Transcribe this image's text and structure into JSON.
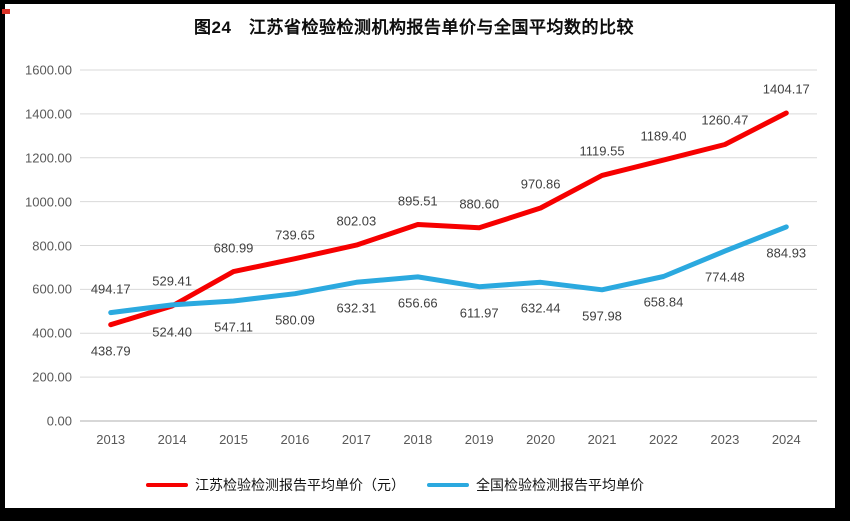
{
  "page": {
    "title": "图24　江苏省检验检测机构报告单价与全国平均数的比较"
  },
  "chart_data": {
    "type": "line",
    "title": "图24　江苏省检验检测机构报告单价与全国平均数的比较",
    "categories": [
      "2013",
      "2014",
      "2015",
      "2016",
      "2017",
      "2018",
      "2019",
      "2020",
      "2021",
      "2022",
      "2023",
      "2024"
    ],
    "series": [
      {
        "name": "江苏检验检测报告平均单价（元）",
        "color": "#f60000",
        "values": [
          438.79,
          524.4,
          680.99,
          739.65,
          802.03,
          895.51,
          880.6,
          970.86,
          1119.55,
          1189.4,
          1260.47,
          1404.17
        ]
      },
      {
        "name": "全国检验检测报告平均单价",
        "color": "#2ba9df",
        "values": [
          494.17,
          529.41,
          547.11,
          580.09,
          632.31,
          656.66,
          611.97,
          632.44,
          597.98,
          658.84,
          774.48,
          884.93
        ]
      }
    ],
    "xlabel": "",
    "ylabel": "",
    "ylim": [
      0,
      1600
    ],
    "ytick_step": 200,
    "y_tick_labels": [
      "0.00",
      "200.00",
      "400.00",
      "600.00",
      "800.00",
      "1000.00",
      "1200.00",
      "1400.00",
      "1600.00"
    ],
    "grid": true,
    "legend_position": "bottom",
    "data_labels": true
  },
  "colors": {
    "gridline": "#d9d9d9",
    "axis_line": "#bfbfbf",
    "axis_text": "#595959",
    "data_label_text": "#3f3f3f",
    "frame": "#000000"
  }
}
